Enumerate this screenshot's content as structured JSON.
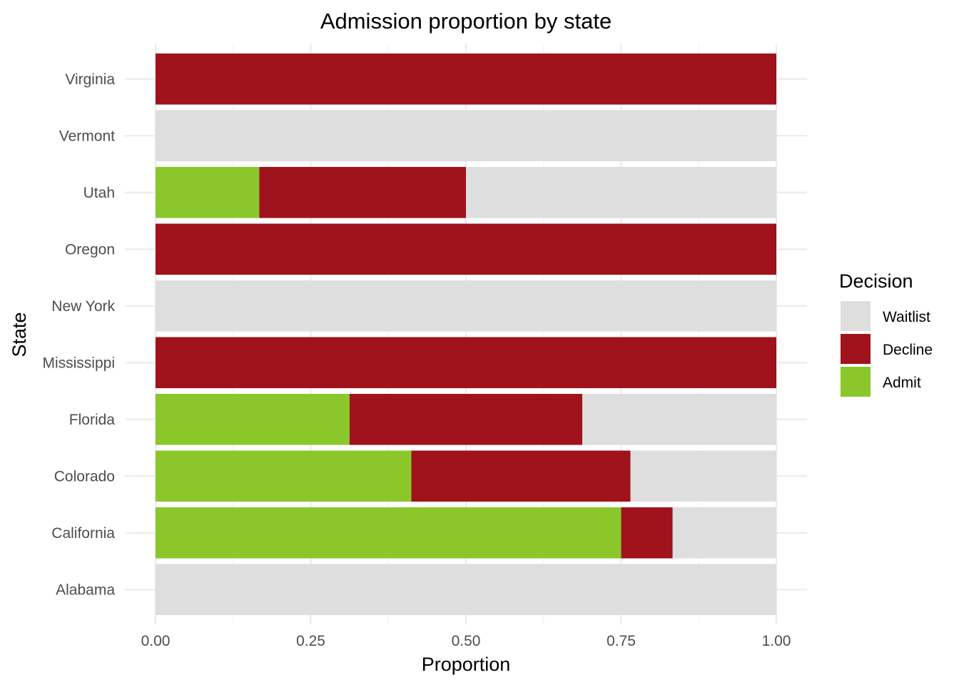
{
  "chart_data": {
    "type": "bar",
    "orientation": "horizontal",
    "stacked": true,
    "title": "Admission proportion by state",
    "xlabel": "Proportion",
    "ylabel": "State",
    "xlim": [
      0,
      1
    ],
    "x_ticks": [
      "0.00",
      "0.25",
      "0.50",
      "0.75",
      "1.00"
    ],
    "x_tick_values": [
      0,
      0.25,
      0.5,
      0.75,
      1.0
    ],
    "categories": [
      "Alabama",
      "California",
      "Colorado",
      "Florida",
      "Mississippi",
      "New York",
      "Oregon",
      "Utah",
      "Vermont",
      "Virginia"
    ],
    "series": [
      {
        "name": "Admit",
        "color": "#8bc72b",
        "values": [
          0,
          0.75,
          0.412,
          0.3125,
          0,
          0,
          0,
          0.167,
          0,
          0
        ]
      },
      {
        "name": "Decline",
        "color": "#a0121c",
        "values": [
          0,
          0.083,
          0.353,
          0.375,
          1.0,
          0,
          1.0,
          0.333,
          0,
          1.0
        ]
      },
      {
        "name": "Waitlist",
        "color": "#dedede",
        "values": [
          1.0,
          0.167,
          0.235,
          0.3125,
          0,
          1.0,
          0,
          0.5,
          1.0,
          0
        ]
      }
    ],
    "legend": {
      "title": "Decision",
      "position": "right",
      "order": [
        "Waitlist",
        "Decline",
        "Admit"
      ]
    },
    "grid": true
  }
}
